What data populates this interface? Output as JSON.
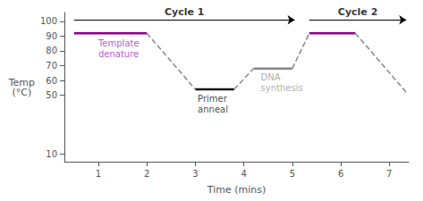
{
  "chart_data": {
    "type": "line",
    "xlabel": "Time (mins)",
    "ylabel": "Temp\n(°C)",
    "xlim": [
      0.3,
      7.4
    ],
    "ylim": [
      5,
      106
    ],
    "xticks": [
      1,
      2,
      3,
      4,
      5,
      6,
      7
    ],
    "yticks": [
      10,
      50,
      60,
      70,
      80,
      90,
      100
    ],
    "grid": false,
    "series": [
      {
        "x": [
          0.5,
          2.0
        ],
        "values": [
          92,
          92
        ],
        "color": "#8B008B",
        "line_style": "solid"
      },
      {
        "x": [
          2.0,
          3.0
        ],
        "values": [
          92,
          54
        ],
        "color": "#888888",
        "line_style": "dashed"
      },
      {
        "x": [
          3.0,
          3.8
        ],
        "values": [
          54,
          54
        ],
        "color": "#111111",
        "line_style": "solid"
      },
      {
        "x": [
          3.8,
          4.2
        ],
        "values": [
          54,
          68
        ],
        "color": "#888888",
        "line_style": "dashed"
      },
      {
        "x": [
          4.2,
          5.0
        ],
        "values": [
          68,
          68
        ],
        "color": "#888888",
        "line_style": "solid"
      },
      {
        "x": [
          5.0,
          5.35
        ],
        "values": [
          68,
          92
        ],
        "color": "#888888",
        "line_style": "dashed"
      },
      {
        "x": [
          5.35,
          6.3
        ],
        "values": [
          92,
          92
        ],
        "color": "#8B008B",
        "line_style": "solid"
      },
      {
        "x": [
          6.3,
          7.35
        ],
        "values": [
          92,
          52
        ],
        "color": "#888888",
        "line_style": "dashed"
      }
    ],
    "annotations": [
      {
        "text": "Cycle 1",
        "x": [
          0.5,
          5.05
        ],
        "y": 101
      },
      {
        "text": "Cycle 2",
        "x": [
          5.35,
          7.35
        ],
        "y": 101
      },
      {
        "text": "Template\ndenature",
        "color": "#9933CC",
        "x": 1.0,
        "y": 89
      },
      {
        "text": "Primer\nanneal",
        "color": "#111111",
        "x": 3.05,
        "y": 51.5
      },
      {
        "text": "DNA\nsynthesis",
        "color": "#999999",
        "x": 4.35,
        "y": 65.5
      }
    ]
  }
}
